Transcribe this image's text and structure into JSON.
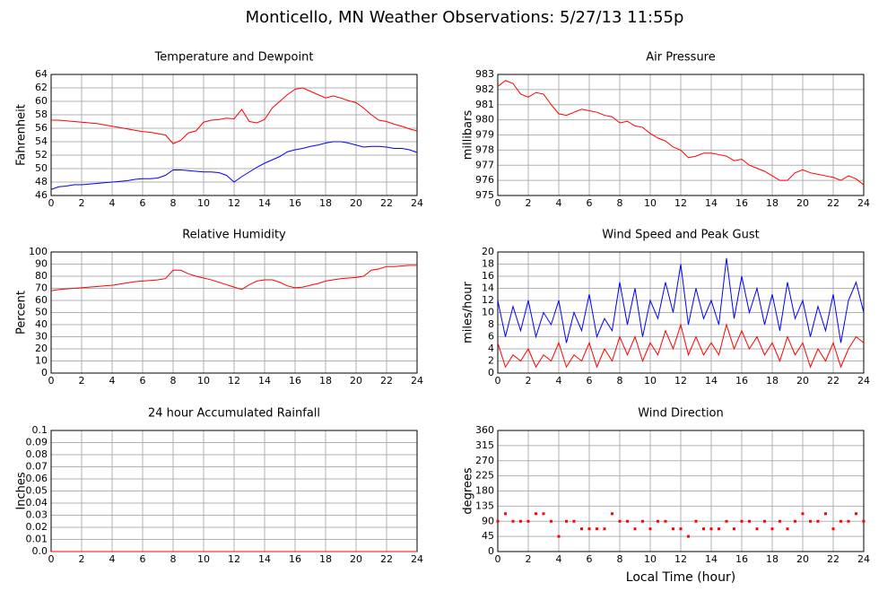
{
  "title": "Monticello, MN Weather Observations: 5/27/13 11:55p",
  "chart_data": [
    {
      "type": "line",
      "title": "Temperature and Dewpoint",
      "y_label": "Fahrenheit",
      "x": [
        0,
        0.5,
        1,
        1.5,
        2,
        2.5,
        3,
        3.5,
        4,
        4.5,
        5,
        5.5,
        6,
        6.5,
        7,
        7.5,
        8,
        8.5,
        9,
        9.5,
        10,
        10.5,
        11,
        11.5,
        12,
        12.5,
        13,
        13.5,
        14,
        14.5,
        15,
        15.5,
        16,
        16.5,
        17,
        17.5,
        18,
        18.5,
        19,
        19.5,
        20,
        20.5,
        21,
        21.5,
        22,
        22.5,
        23,
        23.5,
        24
      ],
      "series": [
        {
          "color": "#ff0000",
          "values": [
            57.2,
            57.2,
            57.1,
            57.0,
            56.9,
            56.8,
            56.7,
            56.5,
            56.3,
            56.1,
            55.9,
            55.7,
            55.5,
            55.4,
            55.2,
            55.0,
            53.7,
            54.2,
            55.3,
            55.6,
            56.9,
            57.2,
            57.3,
            57.5,
            57.4,
            58.8,
            57.0,
            56.8,
            57.3,
            59.0,
            60.0,
            61.0,
            61.8,
            62.0,
            61.5,
            61.0,
            60.5,
            60.8,
            60.5,
            60.1,
            59.8,
            59.0,
            58.0,
            57.2,
            57.0,
            56.6,
            56.3,
            55.9,
            55.6
          ]
        },
        {
          "color": "#0000ff",
          "values": [
            46.9,
            47.3,
            47.4,
            47.6,
            47.6,
            47.7,
            47.8,
            47.9,
            48.0,
            48.1,
            48.2,
            48.4,
            48.5,
            48.5,
            48.6,
            49.0,
            49.8,
            49.8,
            49.7,
            49.6,
            49.5,
            49.5,
            49.4,
            49.0,
            48.0,
            48.8,
            49.5,
            50.2,
            50.8,
            51.3,
            51.8,
            52.5,
            52.8,
            53.0,
            53.3,
            53.5,
            53.8,
            54.0,
            54.0,
            53.8,
            53.5,
            53.2,
            53.3,
            53.3,
            53.2,
            53.0,
            53.0,
            52.8,
            52.4
          ]
        }
      ],
      "xlim": [
        0,
        24
      ],
      "xticks": [
        0,
        2,
        4,
        6,
        8,
        10,
        12,
        14,
        16,
        18,
        20,
        22,
        24
      ],
      "ylim": [
        46,
        64
      ],
      "yticks": [
        46,
        48,
        50,
        52,
        54,
        56,
        58,
        60,
        62,
        64
      ],
      "grid": true
    },
    {
      "type": "line",
      "title": "Air Pressure",
      "y_label": "millibars",
      "x": [
        0,
        0.5,
        1,
        1.5,
        2,
        2.5,
        3,
        3.5,
        4,
        4.5,
        5,
        5.5,
        6,
        6.5,
        7,
        7.5,
        8,
        8.5,
        9,
        9.5,
        10,
        10.5,
        11,
        11.5,
        12,
        12.5,
        13,
        13.5,
        14,
        14.5,
        15,
        15.5,
        16,
        16.5,
        17,
        17.5,
        18,
        18.5,
        19,
        19.5,
        20,
        20.5,
        21,
        21.5,
        22,
        22.5,
        23,
        23.5,
        24
      ],
      "series": [
        {
          "color": "#ff0000",
          "values": [
            982.2,
            982.6,
            982.4,
            981.7,
            981.5,
            981.8,
            981.7,
            981.0,
            980.4,
            980.3,
            980.5,
            980.7,
            980.6,
            980.5,
            980.3,
            980.2,
            979.8,
            979.9,
            979.6,
            979.5,
            979.1,
            978.8,
            978.6,
            978.2,
            978.0,
            977.5,
            977.6,
            977.8,
            977.8,
            977.7,
            977.6,
            977.3,
            977.4,
            977.0,
            976.8,
            976.6,
            976.3,
            976.0,
            976.0,
            976.5,
            976.7,
            976.5,
            976.4,
            976.3,
            976.2,
            976.0,
            976.3,
            976.1,
            975.7
          ]
        }
      ],
      "xlim": [
        0,
        24
      ],
      "xticks": [
        0,
        2,
        4,
        6,
        8,
        10,
        12,
        14,
        16,
        18,
        20,
        22,
        24
      ],
      "ylim": [
        975,
        983
      ],
      "yticks": [
        975,
        976,
        977,
        978,
        979,
        980,
        981,
        982,
        983
      ],
      "grid": true
    },
    {
      "type": "line",
      "title": "Relative Humidity",
      "y_label": "Percent",
      "x": [
        0,
        0.5,
        1,
        1.5,
        2,
        2.5,
        3,
        3.5,
        4,
        4.5,
        5,
        5.5,
        6,
        6.5,
        7,
        7.5,
        8,
        8.5,
        9,
        9.5,
        10,
        10.5,
        11,
        11.5,
        12,
        12.5,
        13,
        13.5,
        14,
        14.5,
        15,
        15.5,
        16,
        16.5,
        17,
        17.5,
        18,
        18.5,
        19,
        19.5,
        20,
        20.5,
        21,
        21.5,
        22,
        22.5,
        23,
        23.5,
        24
      ],
      "series": [
        {
          "color": "#ff0000",
          "values": [
            68,
            69,
            69.5,
            70,
            70.5,
            71,
            71.5,
            72,
            72.5,
            73.5,
            74.5,
            75.5,
            76,
            76.5,
            77,
            78,
            85,
            85,
            82,
            80,
            78.5,
            77,
            75,
            73,
            71,
            69,
            73,
            76,
            77,
            77,
            75,
            72,
            70.5,
            71,
            72.5,
            74,
            76,
            77,
            78,
            78.5,
            79,
            80,
            85,
            86,
            88,
            88,
            88.5,
            89,
            89
          ]
        }
      ],
      "xlim": [
        0,
        24
      ],
      "xticks": [
        0,
        2,
        4,
        6,
        8,
        10,
        12,
        14,
        16,
        18,
        20,
        22,
        24
      ],
      "ylim": [
        0,
        100
      ],
      "yticks": [
        0,
        10,
        20,
        30,
        40,
        50,
        60,
        70,
        80,
        90,
        100
      ],
      "grid": true
    },
    {
      "type": "line",
      "title": "Wind Speed and Peak Gust",
      "y_label": "miles/hour",
      "x": [
        0,
        0.5,
        1,
        1.5,
        2,
        2.5,
        3,
        3.5,
        4,
        4.5,
        5,
        5.5,
        6,
        6.5,
        7,
        7.5,
        8,
        8.5,
        9,
        9.5,
        10,
        10.5,
        11,
        11.5,
        12,
        12.5,
        13,
        13.5,
        14,
        14.5,
        15,
        15.5,
        16,
        16.5,
        17,
        17.5,
        18,
        18.5,
        19,
        19.5,
        20,
        20.5,
        21,
        21.5,
        22,
        22.5,
        23,
        23.5,
        24
      ],
      "series": [
        {
          "color": "#0000ff",
          "values": [
            12,
            6,
            11,
            7,
            12,
            6,
            10,
            8,
            12,
            5,
            10,
            7,
            13,
            6,
            9,
            7,
            15,
            8,
            14,
            6,
            12,
            9,
            15,
            10,
            18,
            8,
            14,
            9,
            12,
            8,
            19,
            9,
            16,
            10,
            14,
            8,
            13,
            7,
            15,
            9,
            12,
            6,
            11,
            7,
            13,
            5,
            12,
            15,
            10
          ]
        },
        {
          "color": "#ff0000",
          "values": [
            5,
            1,
            3,
            2,
            4,
            1,
            3,
            2,
            5,
            1,
            3,
            2,
            5,
            1,
            4,
            2,
            6,
            3,
            6,
            2,
            5,
            3,
            7,
            4,
            8,
            3,
            6,
            3,
            5,
            3,
            8,
            4,
            7,
            4,
            6,
            3,
            5,
            2,
            6,
            3,
            5,
            1,
            4,
            2,
            5,
            1,
            4,
            6,
            5
          ]
        }
      ],
      "xlim": [
        0,
        24
      ],
      "xticks": [
        0,
        2,
        4,
        6,
        8,
        10,
        12,
        14,
        16,
        18,
        20,
        22,
        24
      ],
      "ylim": [
        0,
        20
      ],
      "yticks": [
        0,
        2,
        4,
        6,
        8,
        10,
        12,
        14,
        16,
        18,
        20
      ],
      "grid": true
    },
    {
      "type": "line",
      "title": "24 hour Accumulated Rainfall",
      "y_label": "Inches",
      "x": [
        0,
        24
      ],
      "series": [
        {
          "color": "#ff0000",
          "values": [
            0,
            0
          ]
        }
      ],
      "xlim": [
        0,
        24
      ],
      "xticks": [
        0,
        2,
        4,
        6,
        8,
        10,
        12,
        14,
        16,
        18,
        20,
        22,
        24
      ],
      "ylim": [
        0,
        0.1
      ],
      "yticks": [
        {
          "value": 0,
          "label": "0.0"
        },
        0.01,
        0.02,
        0.03,
        0.04,
        0.05,
        0.06,
        0.07,
        0.08,
        0.09,
        0.1
      ],
      "grid": true
    },
    {
      "type": "scatter",
      "title": "Wind Direction",
      "y_label": "degrees",
      "x_label": "Local Time (hour)",
      "x": [
        0,
        0.5,
        1,
        1.5,
        2,
        2.5,
        3,
        3.5,
        4,
        4.5,
        5,
        5.5,
        6,
        6.5,
        7,
        7.5,
        8,
        8.5,
        9,
        9.5,
        10,
        10.5,
        11,
        11.5,
        12,
        12.5,
        13,
        13.5,
        14,
        14.5,
        15,
        15.5,
        16,
        16.5,
        17,
        17.5,
        18,
        18.5,
        19,
        19.5,
        20,
        20.5,
        21,
        21.5,
        22,
        22.5,
        23,
        23.5,
        24
      ],
      "series": [
        {
          "color": "#ff0000",
          "values": [
            90,
            112.5,
            90,
            90,
            90,
            112.5,
            112.5,
            90,
            45,
            90,
            90,
            67.5,
            67.5,
            67.5,
            67.5,
            112.5,
            90,
            90,
            67.5,
            90,
            67.5,
            90,
            90,
            67.5,
            67.5,
            45,
            90,
            67.5,
            67.5,
            67.5,
            90,
            67.5,
            90,
            90,
            67.5,
            90,
            67.5,
            90,
            67.5,
            90,
            112.5,
            90,
            90,
            112.5,
            67.5,
            90,
            90,
            112.5,
            90
          ]
        }
      ],
      "xlim": [
        0,
        24
      ],
      "xticks": [
        0,
        2,
        4,
        6,
        8,
        10,
        12,
        14,
        16,
        18,
        20,
        22,
        24
      ],
      "ylim": [
        0,
        360
      ],
      "yticks": [
        0,
        45,
        90,
        135,
        180,
        225,
        270,
        315,
        360
      ],
      "grid": true
    }
  ]
}
